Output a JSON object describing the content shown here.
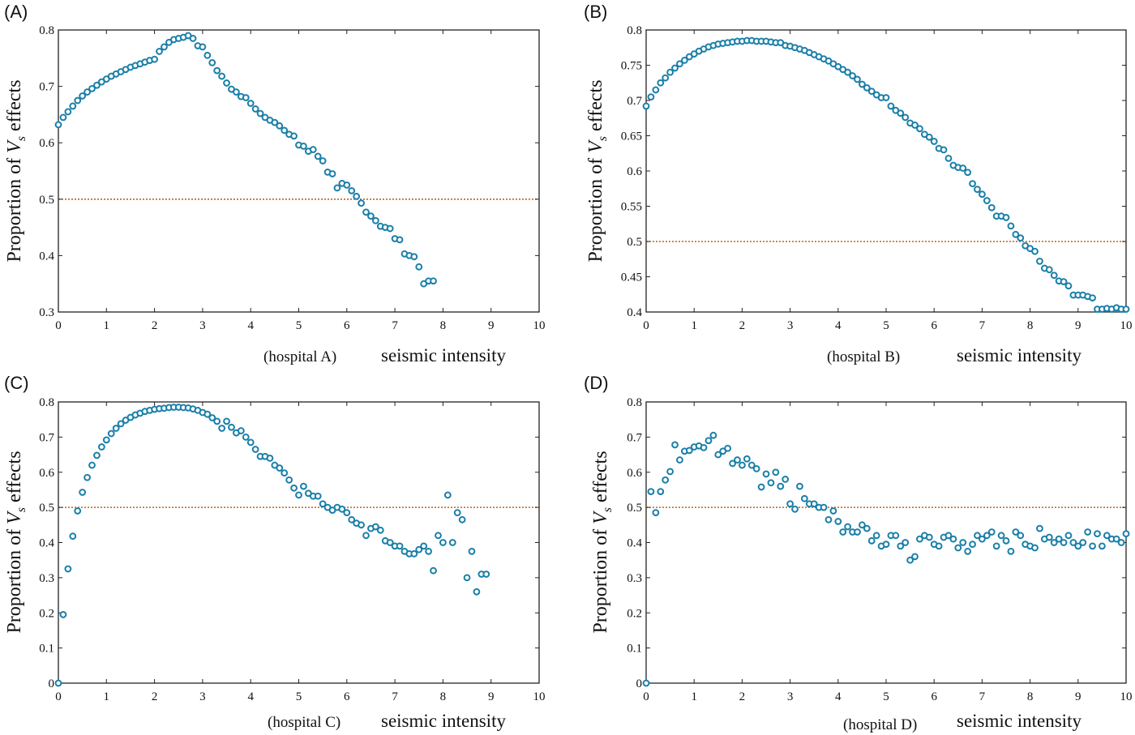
{
  "chart_data": [
    {
      "panel": "(A)",
      "type": "scatter",
      "xlabel": "seismic intensity",
      "hospital_label": "(hospital A)",
      "ylabel_prefix": "Proportion of ",
      "ylabel_var": "V",
      "ylabel_sub": "s",
      "ylabel_suffix": " effects",
      "xlim": [
        0,
        10
      ],
      "ylim": [
        0.3,
        0.8
      ],
      "xticks": [
        0,
        1,
        2,
        3,
        4,
        5,
        6,
        7,
        8,
        9,
        10
      ],
      "yticks": [
        0.3,
        0.4,
        0.5,
        0.6,
        0.7,
        0.8
      ],
      "ytick_labels": [
        "0.3",
        "0.4",
        "0.5",
        "0.6",
        "0.7",
        "0.8"
      ],
      "reference_line": 0.5,
      "x": [
        0,
        0.1,
        0.2,
        0.3,
        0.4,
        0.5,
        0.6,
        0.7,
        0.8,
        0.9,
        1.0,
        1.1,
        1.2,
        1.3,
        1.4,
        1.5,
        1.6,
        1.7,
        1.8,
        1.9,
        2.0,
        2.1,
        2.2,
        2.3,
        2.4,
        2.5,
        2.6,
        2.7,
        2.8,
        2.9,
        3.0,
        3.1,
        3.2,
        3.3,
        3.4,
        3.5,
        3.6,
        3.7,
        3.8,
        3.9,
        4.0,
        4.1,
        4.2,
        4.3,
        4.4,
        4.5,
        4.6,
        4.7,
        4.8,
        4.9,
        5.0,
        5.1,
        5.2,
        5.3,
        5.4,
        5.5,
        5.6,
        5.7,
        5.8,
        5.9,
        6.0,
        6.1,
        6.2,
        6.3,
        6.4,
        6.5,
        6.6,
        6.7,
        6.8,
        6.9,
        7.0,
        7.1,
        7.2,
        7.3,
        7.4,
        7.5,
        7.6,
        7.7,
        7.8
      ],
      "y": [
        0.632,
        0.645,
        0.655,
        0.665,
        0.675,
        0.683,
        0.69,
        0.696,
        0.702,
        0.708,
        0.713,
        0.718,
        0.722,
        0.726,
        0.73,
        0.734,
        0.737,
        0.74,
        0.743,
        0.746,
        0.748,
        0.762,
        0.77,
        0.778,
        0.783,
        0.785,
        0.787,
        0.79,
        0.785,
        0.772,
        0.77,
        0.755,
        0.742,
        0.728,
        0.718,
        0.706,
        0.695,
        0.69,
        0.682,
        0.68,
        0.67,
        0.66,
        0.652,
        0.645,
        0.64,
        0.636,
        0.63,
        0.622,
        0.615,
        0.612,
        0.596,
        0.594,
        0.585,
        0.588,
        0.576,
        0.568,
        0.548,
        0.545,
        0.52,
        0.528,
        0.525,
        0.515,
        0.505,
        0.493,
        0.477,
        0.47,
        0.462,
        0.452,
        0.45,
        0.448,
        0.43,
        0.428,
        0.403,
        0.4,
        0.398,
        0.38,
        0.35,
        0.355,
        0.355
      ]
    },
    {
      "panel": "(B)",
      "type": "scatter",
      "xlabel": "seismic intensity",
      "hospital_label": "(hospital B)",
      "ylabel_prefix": "Proportion of ",
      "ylabel_var": "V",
      "ylabel_sub": "s",
      "ylabel_suffix": " effects",
      "xlim": [
        0,
        10
      ],
      "ylim": [
        0.4,
        0.8
      ],
      "xticks": [
        0,
        1,
        2,
        3,
        4,
        5,
        6,
        7,
        8,
        9,
        10
      ],
      "yticks": [
        0.4,
        0.45,
        0.5,
        0.55,
        0.6,
        0.65,
        0.7,
        0.75,
        0.8
      ],
      "ytick_labels": [
        "0.4",
        "0.45",
        "0.5",
        "0.55",
        "0.6",
        "0.65",
        "0.7",
        "0.75",
        "0.8"
      ],
      "reference_line": 0.5,
      "x": [
        0,
        0.1,
        0.2,
        0.3,
        0.4,
        0.5,
        0.6,
        0.7,
        0.8,
        0.9,
        1.0,
        1.1,
        1.2,
        1.3,
        1.4,
        1.5,
        1.6,
        1.7,
        1.8,
        1.9,
        2.0,
        2.1,
        2.2,
        2.3,
        2.4,
        2.5,
        2.6,
        2.7,
        2.8,
        2.9,
        3.0,
        3.1,
        3.2,
        3.3,
        3.4,
        3.5,
        3.6,
        3.7,
        3.8,
        3.9,
        4.0,
        4.1,
        4.2,
        4.3,
        4.4,
        4.5,
        4.6,
        4.7,
        4.8,
        4.9,
        5.0,
        5.1,
        5.2,
        5.3,
        5.4,
        5.5,
        5.6,
        5.7,
        5.8,
        5.9,
        6.0,
        6.1,
        6.2,
        6.3,
        6.4,
        6.5,
        6.6,
        6.7,
        6.8,
        6.9,
        7.0,
        7.1,
        7.2,
        7.3,
        7.4,
        7.5,
        7.6,
        7.7,
        7.8,
        7.9,
        8.0,
        8.1,
        8.2,
        8.3,
        8.4,
        8.5,
        8.6,
        8.7,
        8.8,
        8.9,
        9.0,
        9.1,
        9.2,
        9.3,
        9.4,
        9.5,
        9.6,
        9.7,
        9.8,
        9.9,
        10.0
      ],
      "y": [
        0.692,
        0.705,
        0.715,
        0.725,
        0.732,
        0.74,
        0.746,
        0.752,
        0.757,
        0.762,
        0.766,
        0.77,
        0.773,
        0.776,
        0.778,
        0.78,
        0.781,
        0.782,
        0.783,
        0.784,
        0.784,
        0.785,
        0.785,
        0.784,
        0.784,
        0.784,
        0.783,
        0.782,
        0.782,
        0.778,
        0.777,
        0.775,
        0.773,
        0.771,
        0.768,
        0.765,
        0.762,
        0.759,
        0.756,
        0.752,
        0.748,
        0.744,
        0.74,
        0.735,
        0.73,
        0.723,
        0.718,
        0.713,
        0.708,
        0.704,
        0.704,
        0.692,
        0.686,
        0.682,
        0.676,
        0.668,
        0.665,
        0.66,
        0.652,
        0.648,
        0.642,
        0.632,
        0.63,
        0.618,
        0.608,
        0.605,
        0.604,
        0.598,
        0.582,
        0.574,
        0.567,
        0.558,
        0.548,
        0.536,
        0.536,
        0.534,
        0.522,
        0.51,
        0.505,
        0.494,
        0.49,
        0.486,
        0.472,
        0.462,
        0.46,
        0.452,
        0.444,
        0.443,
        0.437,
        0.424,
        0.424,
        0.424,
        0.422,
        0.42,
        0.404,
        0.404,
        0.405,
        0.404,
        0.406,
        0.404,
        0.404
      ]
    },
    {
      "panel": "(C)",
      "type": "scatter",
      "xlabel": "seismic intensity",
      "hospital_label": "(hospital C)",
      "ylabel_prefix": "Proportion of ",
      "ylabel_var": "V",
      "ylabel_sub": "s",
      "ylabel_suffix": " effects",
      "xlim": [
        0,
        10
      ],
      "ylim": [
        0,
        0.8
      ],
      "xticks": [
        0,
        1,
        2,
        3,
        4,
        5,
        6,
        7,
        8,
        9,
        10
      ],
      "yticks": [
        0,
        0.1,
        0.2,
        0.3,
        0.4,
        0.5,
        0.6,
        0.7,
        0.8
      ],
      "ytick_labels": [
        "0",
        "0.1",
        "0.2",
        "0.3",
        "0.4",
        "0.5",
        "0.6",
        "0.7",
        "0.8"
      ],
      "reference_line": 0.5,
      "x": [
        0,
        0.1,
        0.2,
        0.3,
        0.4,
        0.5,
        0.6,
        0.7,
        0.8,
        0.9,
        1.0,
        1.1,
        1.2,
        1.3,
        1.4,
        1.5,
        1.6,
        1.7,
        1.8,
        1.9,
        2.0,
        2.1,
        2.2,
        2.3,
        2.4,
        2.5,
        2.6,
        2.7,
        2.8,
        2.9,
        3.0,
        3.1,
        3.2,
        3.3,
        3.4,
        3.5,
        3.6,
        3.7,
        3.8,
        3.9,
        4.0,
        4.1,
        4.2,
        4.3,
        4.4,
        4.5,
        4.6,
        4.7,
        4.8,
        4.9,
        5.0,
        5.1,
        5.2,
        5.3,
        5.4,
        5.5,
        5.6,
        5.7,
        5.8,
        5.9,
        6.0,
        6.1,
        6.2,
        6.3,
        6.4,
        6.5,
        6.6,
        6.7,
        6.8,
        6.9,
        7.0,
        7.1,
        7.2,
        7.3,
        7.4,
        7.5,
        7.6,
        7.7,
        7.8,
        7.9,
        8.0,
        8.1,
        8.2,
        8.3,
        8.4,
        8.5,
        8.6,
        8.7,
        8.8,
        8.9
      ],
      "y": [
        0.0,
        0.195,
        0.325,
        0.418,
        0.49,
        0.543,
        0.585,
        0.62,
        0.648,
        0.672,
        0.692,
        0.71,
        0.725,
        0.738,
        0.748,
        0.756,
        0.763,
        0.768,
        0.773,
        0.776,
        0.779,
        0.781,
        0.782,
        0.784,
        0.785,
        0.785,
        0.784,
        0.783,
        0.78,
        0.776,
        0.77,
        0.765,
        0.755,
        0.745,
        0.725,
        0.745,
        0.728,
        0.712,
        0.718,
        0.7,
        0.685,
        0.665,
        0.645,
        0.645,
        0.64,
        0.62,
        0.612,
        0.598,
        0.578,
        0.555,
        0.535,
        0.56,
        0.54,
        0.532,
        0.532,
        0.51,
        0.5,
        0.492,
        0.5,
        0.495,
        0.485,
        0.465,
        0.455,
        0.45,
        0.42,
        0.44,
        0.445,
        0.435,
        0.405,
        0.4,
        0.39,
        0.39,
        0.375,
        0.368,
        0.368,
        0.38,
        0.39,
        0.375,
        0.32,
        0.42,
        0.4,
        0.535,
        0.4,
        0.485,
        0.465,
        0.3,
        0.375,
        0.26,
        0.31,
        0.31
      ]
    },
    {
      "panel": "(D)",
      "type": "scatter",
      "xlabel": "seismic intensity",
      "hospital_label": "(hospital D)",
      "ylabel_prefix": "Proportion of ",
      "ylabel_var": "V",
      "ylabel_sub": "s",
      "ylabel_suffix": " effects",
      "xlim": [
        0,
        10
      ],
      "ylim": [
        0,
        0.8
      ],
      "xticks": [
        0,
        1,
        2,
        3,
        4,
        5,
        6,
        7,
        8,
        9,
        10
      ],
      "yticks": [
        0,
        0.1,
        0.2,
        0.3,
        0.4,
        0.5,
        0.6,
        0.7,
        0.8
      ],
      "ytick_labels": [
        "0",
        "0.1",
        "0.2",
        "0.3",
        "0.4",
        "0.5",
        "0.6",
        "0.7",
        "0.8"
      ],
      "reference_line": 0.5,
      "x": [
        0,
        0.1,
        0.2,
        0.3,
        0.4,
        0.5,
        0.6,
        0.7,
        0.8,
        0.9,
        1.0,
        1.1,
        1.2,
        1.3,
        1.4,
        1.5,
        1.6,
        1.7,
        1.8,
        1.9,
        2.0,
        2.1,
        2.2,
        2.3,
        2.4,
        2.5,
        2.6,
        2.7,
        2.8,
        2.9,
        3.0,
        3.1,
        3.2,
        3.3,
        3.4,
        3.5,
        3.6,
        3.7,
        3.8,
        3.9,
        4.0,
        4.1,
        4.2,
        4.3,
        4.4,
        4.5,
        4.6,
        4.7,
        4.8,
        4.9,
        5.0,
        5.1,
        5.2,
        5.3,
        5.4,
        5.5,
        5.6,
        5.7,
        5.8,
        5.9,
        6.0,
        6.1,
        6.2,
        6.3,
        6.4,
        6.5,
        6.6,
        6.7,
        6.8,
        6.9,
        7.0,
        7.1,
        7.2,
        7.3,
        7.4,
        7.5,
        7.6,
        7.7,
        7.8,
        7.9,
        8.0,
        8.1,
        8.2,
        8.3,
        8.4,
        8.5,
        8.6,
        8.7,
        8.8,
        8.9,
        9.0,
        9.1,
        9.2,
        9.3,
        9.4,
        9.5,
        9.6,
        9.7,
        9.8,
        9.9,
        10.0
      ],
      "y": [
        0.0,
        0.545,
        0.485,
        0.545,
        0.578,
        0.602,
        0.678,
        0.635,
        0.66,
        0.662,
        0.672,
        0.675,
        0.67,
        0.69,
        0.705,
        0.65,
        0.66,
        0.668,
        0.625,
        0.635,
        0.62,
        0.638,
        0.62,
        0.61,
        0.558,
        0.595,
        0.57,
        0.6,
        0.56,
        0.58,
        0.51,
        0.495,
        0.56,
        0.525,
        0.51,
        0.51,
        0.5,
        0.5,
        0.465,
        0.49,
        0.46,
        0.43,
        0.445,
        0.43,
        0.43,
        0.45,
        0.44,
        0.405,
        0.42,
        0.39,
        0.395,
        0.42,
        0.42,
        0.39,
        0.4,
        0.35,
        0.36,
        0.41,
        0.42,
        0.415,
        0.395,
        0.39,
        0.415,
        0.42,
        0.41,
        0.385,
        0.4,
        0.375,
        0.395,
        0.42,
        0.41,
        0.42,
        0.43,
        0.39,
        0.42,
        0.405,
        0.375,
        0.43,
        0.42,
        0.395,
        0.39,
        0.385,
        0.44,
        0.41,
        0.415,
        0.4,
        0.41,
        0.4,
        0.42,
        0.4,
        0.39,
        0.4,
        0.43,
        0.39,
        0.425,
        0.39,
        0.42,
        0.41,
        0.41,
        0.4,
        0.425
      ]
    }
  ],
  "style": {
    "marker_stroke": "#1a7fa8",
    "marker_fill": "#ffffff",
    "reference_line_color": "#b5651d",
    "axis_color": "#222222"
  }
}
